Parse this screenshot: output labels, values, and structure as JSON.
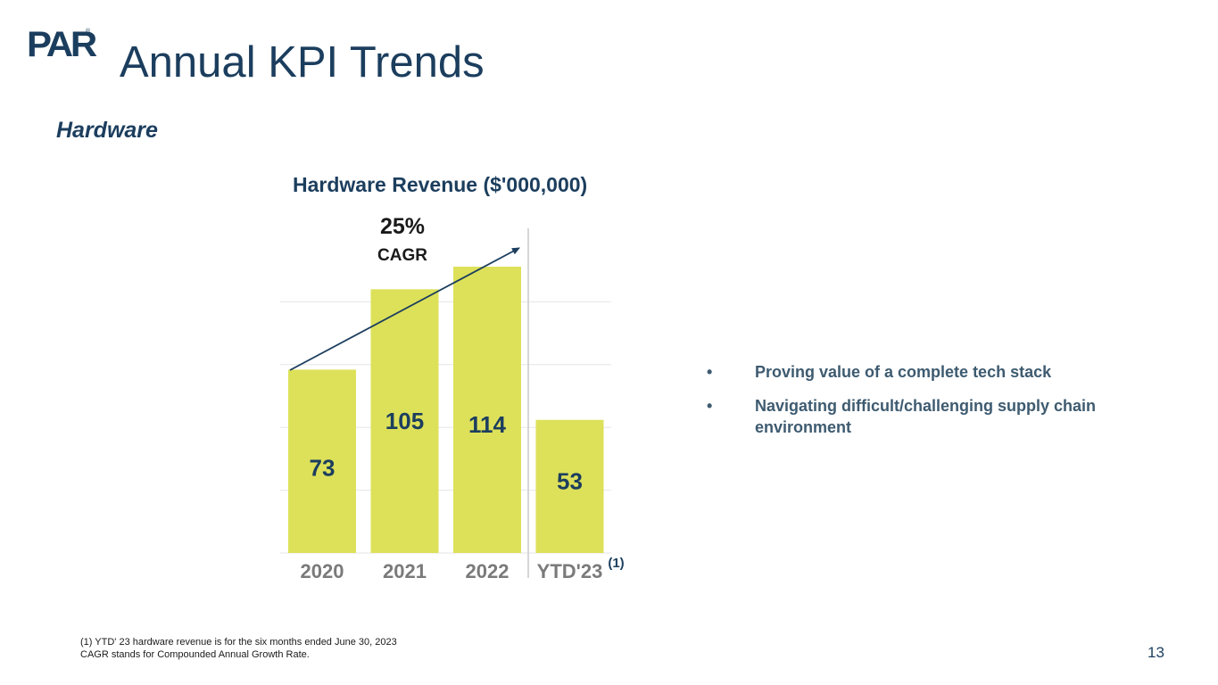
{
  "logo": {
    "text": "PAR",
    "reg": "®"
  },
  "header": {
    "title": "Annual KPI Trends"
  },
  "section": {
    "title": "Hardware"
  },
  "chart_data": {
    "type": "bar",
    "title": "Hardware Revenue ($'000,000)",
    "categories": [
      "2020",
      "2021",
      "2022",
      "YTD'23"
    ],
    "values": [
      73,
      105,
      114,
      53
    ],
    "category_note": {
      "category": "YTD'23",
      "marker": "(1)"
    },
    "ylim": [
      0,
      125
    ],
    "grid": true,
    "bar_color": "#dde15a",
    "label_color": "#1c3e5e",
    "annotation": {
      "value": "25%",
      "label": "CAGR"
    },
    "divider_before": "YTD'23"
  },
  "bullets": [
    "Proving value of a complete tech stack",
    "Navigating difficult/challenging supply chain environment"
  ],
  "bullet_marker": "•",
  "footnotes": [
    "(1) YTD' 23 hardware revenue is for the six months ended June 30, 2023",
    "CAGR stands for Compounded Annual Growth Rate."
  ],
  "page_number": "13"
}
